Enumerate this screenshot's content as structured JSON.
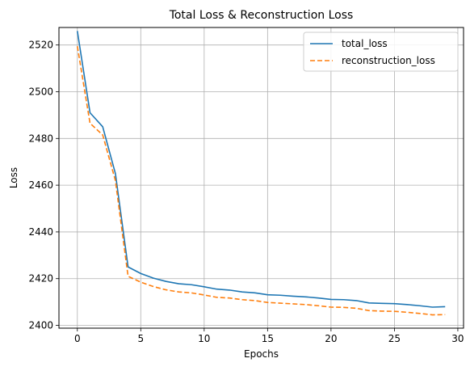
{
  "chart_data": {
    "type": "line",
    "title": "Total Loss & Reconstruction Loss",
    "xlabel": "Epochs",
    "ylabel": "Loss",
    "xlim": [
      -1.45,
      30.45
    ],
    "ylim": [
      2398.8,
      2527.5
    ],
    "xticks": [
      0,
      5,
      10,
      15,
      20,
      25,
      30
    ],
    "yticks": [
      2400,
      2420,
      2440,
      2460,
      2480,
      2500,
      2520
    ],
    "grid": true,
    "legend_position": "top-right",
    "x": [
      0,
      1,
      2,
      3,
      4,
      5,
      6,
      7,
      8,
      9,
      10,
      11,
      12,
      13,
      14,
      15,
      16,
      17,
      18,
      19,
      20,
      21,
      22,
      23,
      24,
      25,
      26,
      27,
      28,
      29
    ],
    "series": [
      {
        "name": "total_loss",
        "color": "#1f77b4",
        "style": "solid",
        "values": [
          2526.0,
          2491.0,
          2485.0,
          2465.0,
          2425.0,
          2422.2,
          2420.2,
          2418.8,
          2417.8,
          2417.4,
          2416.5,
          2415.5,
          2415.1,
          2414.3,
          2413.9,
          2413.1,
          2412.9,
          2412.5,
          2412.2,
          2411.7,
          2411.1,
          2411.0,
          2410.6,
          2409.6,
          2409.4,
          2409.3,
          2408.9,
          2408.4,
          2407.8,
          2408.0
        ]
      },
      {
        "name": "reconstruction_loss",
        "color": "#ff7f0e",
        "style": "dashed",
        "values": [
          2519.5,
          2486.5,
          2481.5,
          2462.0,
          2421.0,
          2418.5,
          2416.6,
          2415.2,
          2414.3,
          2413.9,
          2413.0,
          2412.0,
          2411.7,
          2411.0,
          2410.6,
          2409.8,
          2409.5,
          2409.2,
          2408.9,
          2408.4,
          2407.8,
          2407.7,
          2407.3,
          2406.3,
          2406.1,
          2406.0,
          2405.6,
          2405.1,
          2404.5,
          2404.6
        ]
      }
    ]
  }
}
